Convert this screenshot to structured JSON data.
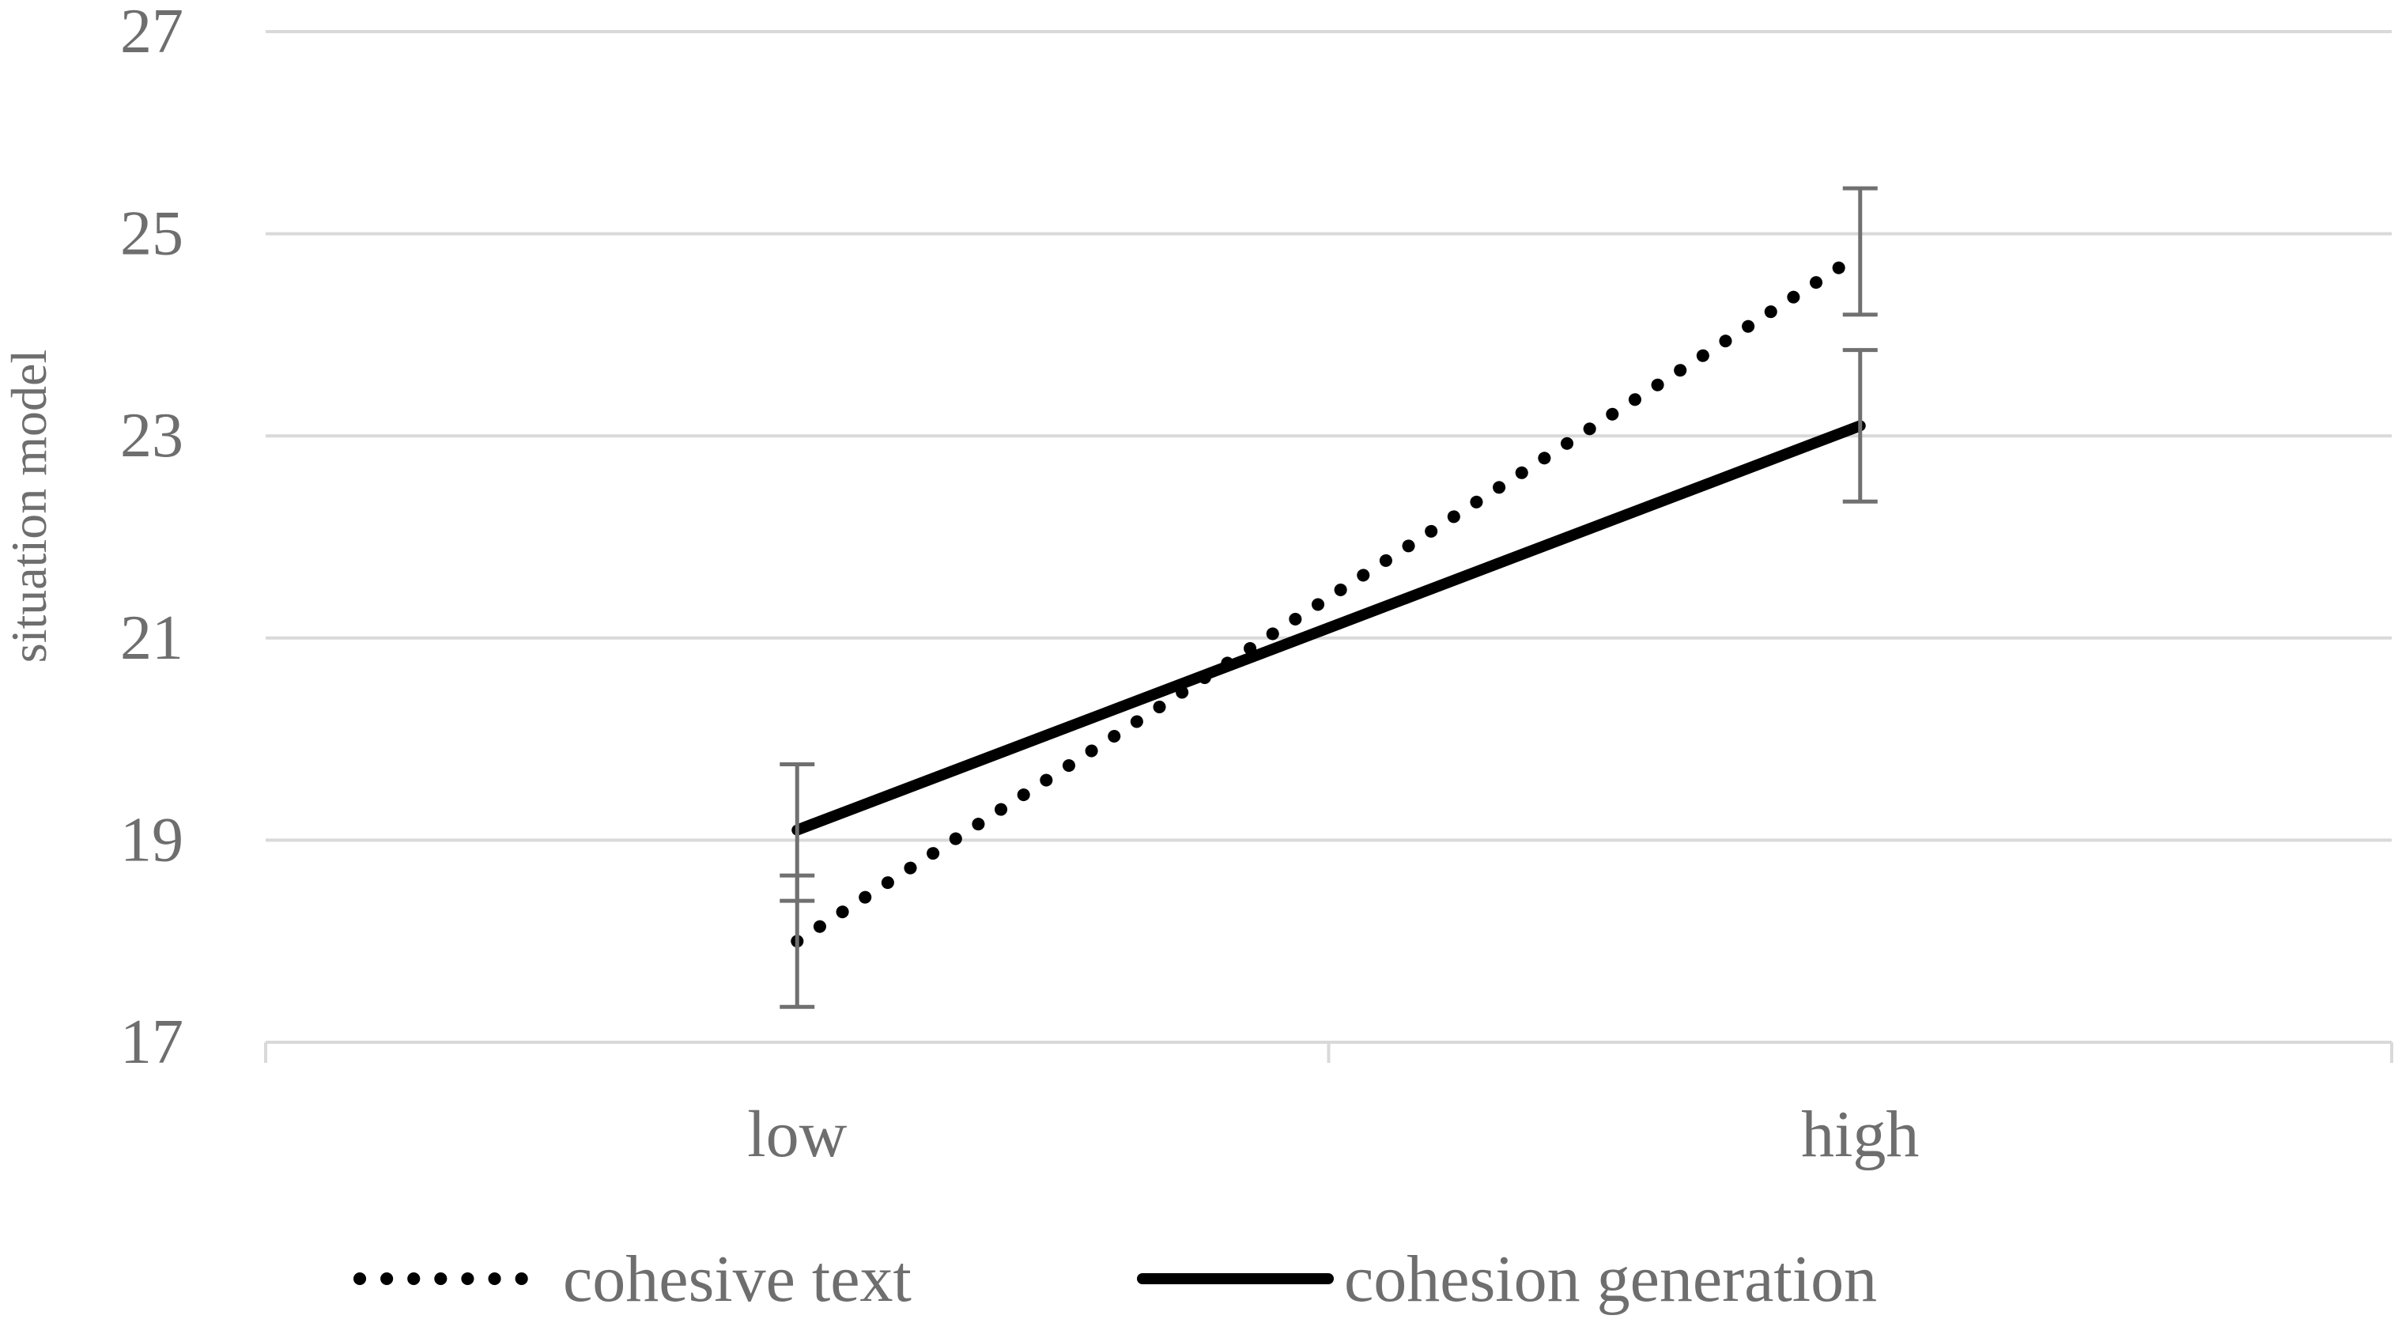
{
  "chart_data": {
    "type": "line",
    "title": "",
    "xlabel": "",
    "ylabel": "situation model",
    "categories": [
      "low",
      "high"
    ],
    "ylim": [
      17,
      27
    ],
    "yticks": [
      17,
      19,
      21,
      23,
      25,
      27
    ],
    "grid": true,
    "legend_position": "bottom",
    "series": [
      {
        "name": "cohesive text",
        "style": "dotted",
        "color": "#000000",
        "values": [
          18.0,
          24.8
        ],
        "error": [
          [
            17.35,
            18.65
          ],
          [
            24.2,
            25.45
          ]
        ]
      },
      {
        "name": "cohesion generation",
        "style": "solid",
        "color": "#000000",
        "values": [
          19.1,
          23.1
        ],
        "error": [
          [
            18.4,
            19.75
          ],
          [
            22.35,
            23.85
          ]
        ]
      }
    ],
    "colors": {
      "grid": "#d9d9d9",
      "axis": "#d9d9d9",
      "text": "#6e6e6e",
      "errorbar": "#707070"
    }
  }
}
